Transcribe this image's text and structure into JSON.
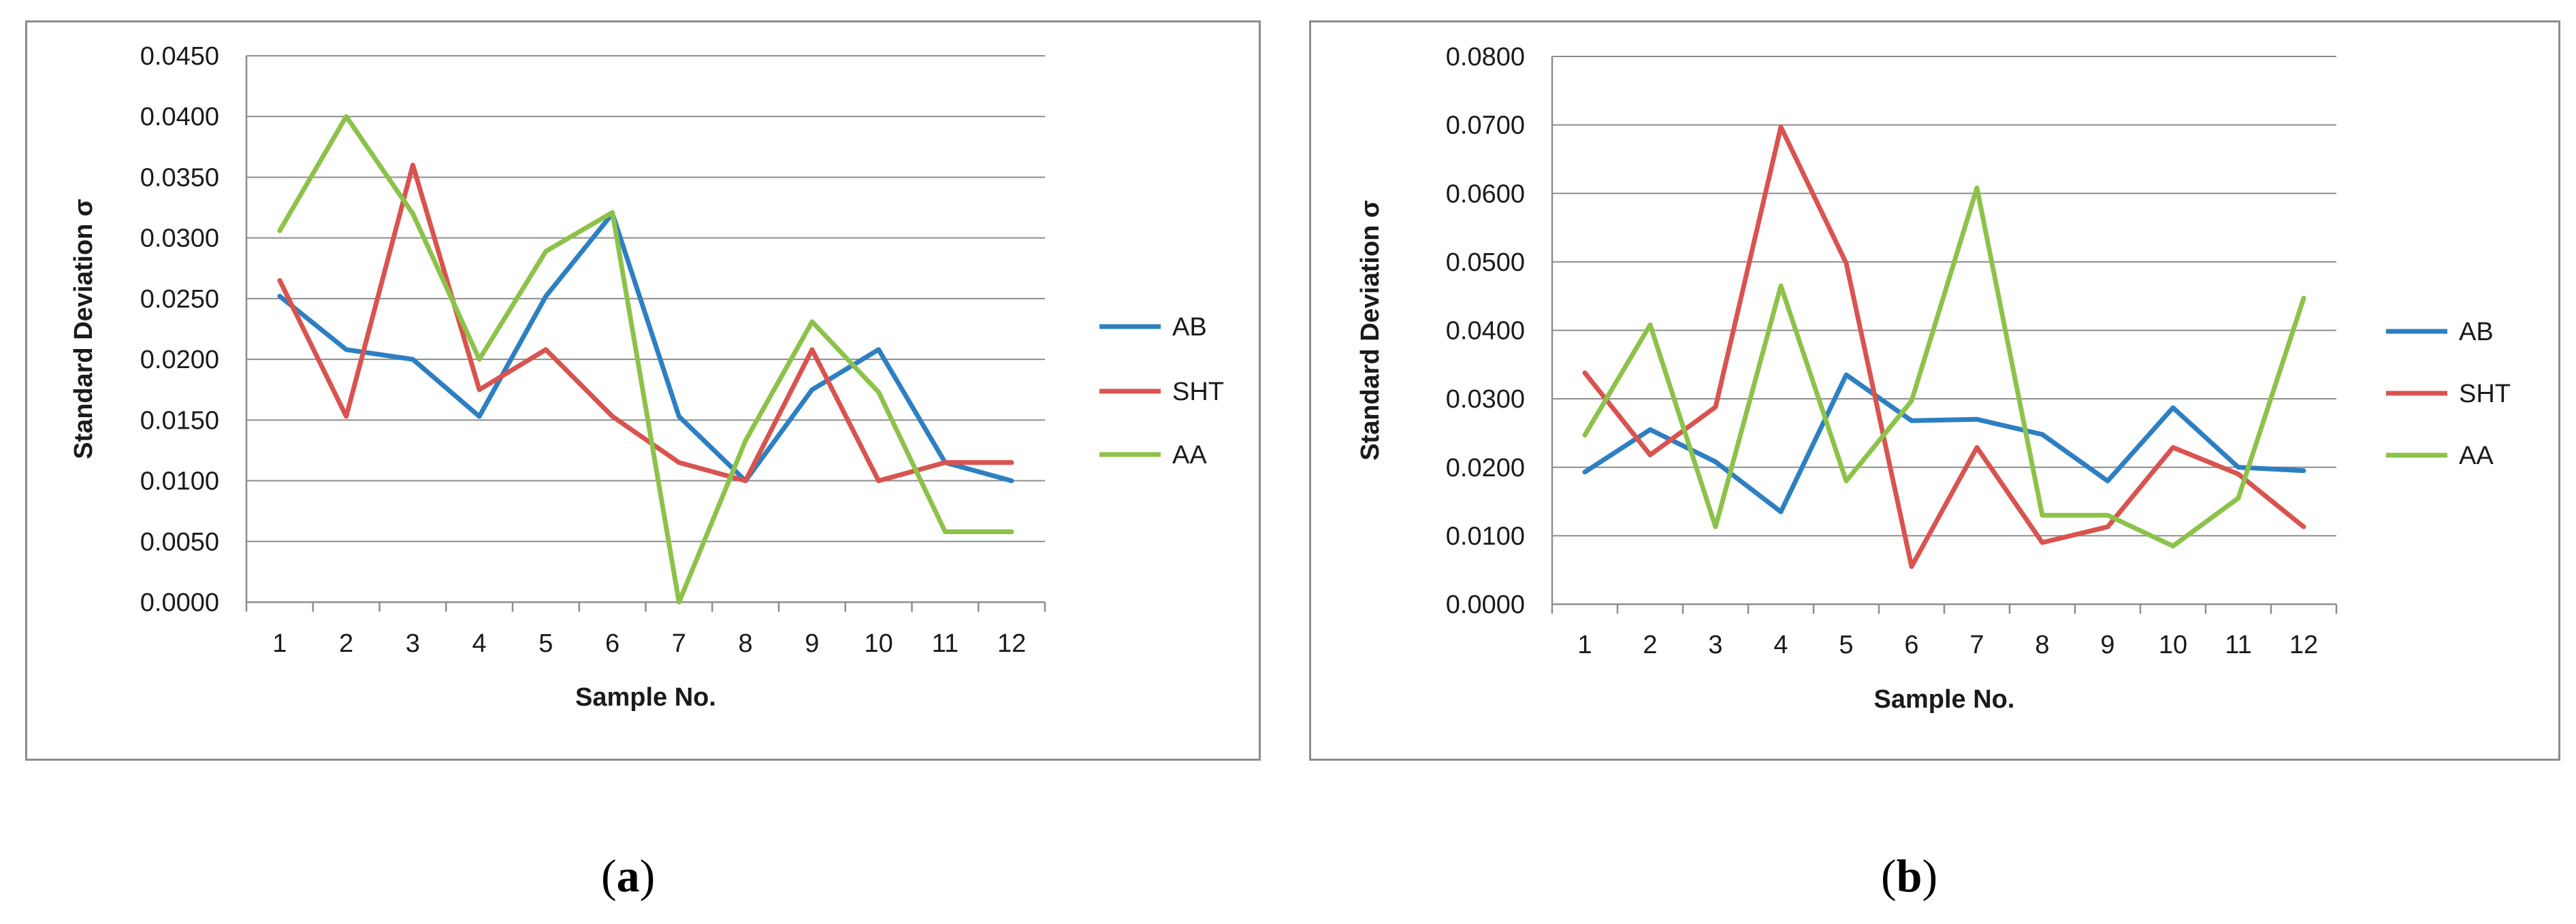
{
  "chart_data": [
    {
      "id": "a",
      "type": "line",
      "caption": {
        "open": "(",
        "letter": "a",
        "close": ")"
      },
      "xlabel": "Sample No.",
      "ylabel": "Standard Deviation σ",
      "categories": [
        "1",
        "2",
        "3",
        "4",
        "5",
        "6",
        "7",
        "8",
        "9",
        "10",
        "11",
        "12"
      ],
      "yticks": [
        "0.0000",
        "0.0050",
        "0.0100",
        "0.0150",
        "0.0200",
        "0.0250",
        "0.0300",
        "0.0350",
        "0.0400",
        "0.0450"
      ],
      "ylim": [
        0,
        0.045
      ],
      "grid": true,
      "legend": "right",
      "series": [
        {
          "name": "AB",
          "color": "#2e7fc2",
          "values": [
            0.0252,
            0.0208,
            0.02,
            0.0153,
            0.0252,
            0.032,
            0.0153,
            0.01,
            0.0175,
            0.0208,
            0.0115,
            0.01
          ]
        },
        {
          "name": "SHT",
          "color": "#d9534f",
          "values": [
            0.0265,
            0.0153,
            0.036,
            0.0175,
            0.0208,
            0.0153,
            0.0115,
            0.01,
            0.0208,
            0.01,
            0.0115,
            0.0115
          ]
        },
        {
          "name": "AA",
          "color": "#8dc24a",
          "values": [
            0.0306,
            0.04,
            0.032,
            0.02,
            0.0289,
            0.0321,
            0.0,
            0.0133,
            0.0231,
            0.0173,
            0.0058,
            0.0058
          ]
        }
      ]
    },
    {
      "id": "b",
      "type": "line",
      "caption": {
        "open": "(",
        "letter": "b",
        "close": ")"
      },
      "xlabel": "Sample No.",
      "ylabel": "Standard Deviation σ",
      "categories": [
        "1",
        "2",
        "3",
        "4",
        "5",
        "6",
        "7",
        "8",
        "9",
        "10",
        "11",
        "12"
      ],
      "yticks": [
        "0.0000",
        "0.0100",
        "0.0200",
        "0.0300",
        "0.0400",
        "0.0500",
        "0.0600",
        "0.0700",
        "0.0800"
      ],
      "ylim": [
        0,
        0.08
      ],
      "grid": true,
      "legend": "right",
      "series": [
        {
          "name": "AB",
          "color": "#2e7fc2",
          "values": [
            0.0193,
            0.0255,
            0.0208,
            0.0135,
            0.0335,
            0.0268,
            0.027,
            0.0248,
            0.018,
            0.0287,
            0.02,
            0.0195
          ]
        },
        {
          "name": "SHT",
          "color": "#d9534f",
          "values": [
            0.0338,
            0.0218,
            0.0288,
            0.0697,
            0.0498,
            0.0055,
            0.0229,
            0.009,
            0.0113,
            0.0229,
            0.019,
            0.0113
          ]
        },
        {
          "name": "AA",
          "color": "#8dc24a",
          "values": [
            0.0247,
            0.0408,
            0.0113,
            0.0465,
            0.018,
            0.0297,
            0.0608,
            0.013,
            0.013,
            0.0085,
            0.0155,
            0.0447
          ]
        }
      ]
    }
  ]
}
